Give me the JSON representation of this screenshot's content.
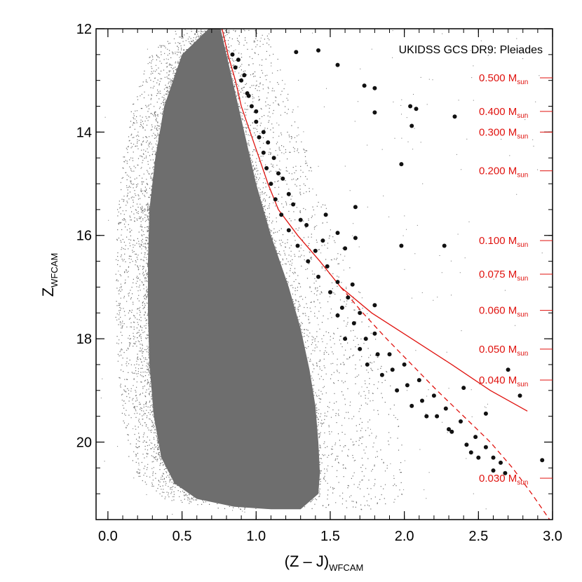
{
  "chart_data": {
    "type": "scatter",
    "title": "UKIDSS GCS DR9: Pleiades",
    "xlabel": "(Z – J)",
    "xlabel_sub": "WFCAM",
    "ylabel": "Z",
    "ylabel_sub": "WFCAM",
    "xlim": [
      -0.08,
      3.0
    ],
    "ylim": [
      21.5,
      12.0
    ],
    "y_inverted": true,
    "x_ticks": [
      0.0,
      0.5,
      1.0,
      1.5,
      2.0,
      2.5,
      3.0
    ],
    "x_tick_labels": [
      "0.0",
      "0.5",
      "1.0",
      "1.5",
      "2.0",
      "2.5",
      "3.0"
    ],
    "y_ticks": [
      12,
      14,
      16,
      18,
      20
    ],
    "y_tick_labels": [
      "12",
      "14",
      "16",
      "18",
      "20"
    ],
    "grid": false,
    "colors": {
      "field": "#6e6e6e",
      "members": "#111111",
      "isochrone": "#e0130f"
    },
    "field_population": {
      "name": "",
      "description_note": "",
      "left_edge": [
        [
          0.68,
          12.0
        ],
        [
          0.5,
          12.5
        ],
        [
          0.38,
          13.5
        ],
        [
          0.32,
          14.5
        ],
        [
          0.28,
          15.5
        ],
        [
          0.27,
          16.5
        ],
        [
          0.27,
          17.5
        ],
        [
          0.28,
          18.5
        ],
        [
          0.31,
          19.5
        ],
        [
          0.36,
          20.3
        ],
        [
          0.45,
          20.8
        ],
        [
          0.6,
          21.1
        ],
        [
          0.85,
          21.25
        ],
        [
          1.1,
          21.3
        ],
        [
          1.3,
          21.3
        ]
      ],
      "right_edge": [
        [
          0.76,
          12.0
        ],
        [
          0.84,
          13.0
        ],
        [
          0.92,
          14.0
        ],
        [
          1.0,
          15.0
        ],
        [
          1.1,
          16.0
        ],
        [
          1.22,
          17.0
        ],
        [
          1.3,
          17.8
        ],
        [
          1.36,
          18.6
        ],
        [
          1.4,
          19.3
        ],
        [
          1.42,
          20.0
        ],
        [
          1.43,
          20.6
        ],
        [
          1.42,
          21.0
        ],
        [
          1.3,
          21.3
        ]
      ]
    },
    "members": [
      [
        1.27,
        12.45
      ],
      [
        1.42,
        12.42
      ],
      [
        1.55,
        12.7
      ],
      [
        1.73,
        13.1
      ],
      [
        1.8,
        13.15
      ],
      [
        1.8,
        13.62
      ],
      [
        2.04,
        13.5
      ],
      [
        2.08,
        13.55
      ],
      [
        2.05,
        13.88
      ],
      [
        2.34,
        13.7
      ],
      [
        1.98,
        14.62
      ],
      [
        1.67,
        15.45
      ],
      [
        1.47,
        15.6
      ],
      [
        1.55,
        15.95
      ],
      [
        1.67,
        16.05
      ],
      [
        1.98,
        16.2
      ],
      [
        2.27,
        16.2
      ],
      [
        1.6,
        16.25
      ],
      [
        0.84,
        12.5
      ],
      [
        0.86,
        12.75
      ],
      [
        0.9,
        13.0
      ],
      [
        0.94,
        13.25
      ],
      [
        0.97,
        13.5
      ],
      [
        1.0,
        13.8
      ],
      [
        1.02,
        14.1
      ],
      [
        1.05,
        14.4
      ],
      [
        1.07,
        14.7
      ],
      [
        1.1,
        15.0
      ],
      [
        1.13,
        15.3
      ],
      [
        1.17,
        15.6
      ],
      [
        1.22,
        15.9
      ],
      [
        1.28,
        16.2
      ],
      [
        1.35,
        16.5
      ],
      [
        1.42,
        16.8
      ],
      [
        1.5,
        17.1
      ],
      [
        1.58,
        17.4
      ],
      [
        1.66,
        17.7
      ],
      [
        1.74,
        18.0
      ],
      [
        1.82,
        18.3
      ],
      [
        1.92,
        18.6
      ],
      [
        2.02,
        18.9
      ],
      [
        2.12,
        19.2
      ],
      [
        2.22,
        19.5
      ],
      [
        2.32,
        19.8
      ],
      [
        2.42,
        20.05
      ],
      [
        2.5,
        20.3
      ],
      [
        2.6,
        20.55
      ],
      [
        2.68,
        20.6
      ],
      [
        0.95,
        13.3
      ],
      [
        1.0,
        13.6
      ],
      [
        1.08,
        14.2
      ],
      [
        1.12,
        14.5
      ],
      [
        1.18,
        14.9
      ],
      [
        1.22,
        15.2
      ],
      [
        1.3,
        15.7
      ],
      [
        1.4,
        16.3
      ],
      [
        1.48,
        16.6
      ],
      [
        1.55,
        16.9
      ],
      [
        1.62,
        17.2
      ],
      [
        1.7,
        17.5
      ],
      [
        1.8,
        17.9
      ],
      [
        1.9,
        18.3
      ],
      [
        2.0,
        18.5
      ],
      [
        2.1,
        18.8
      ],
      [
        2.2,
        19.1
      ],
      [
        2.28,
        19.35
      ],
      [
        2.38,
        19.6
      ],
      [
        2.48,
        19.9
      ],
      [
        2.55,
        20.1
      ],
      [
        2.65,
        20.4
      ],
      [
        1.55,
        17.55
      ],
      [
        1.6,
        18.0
      ],
      [
        1.7,
        18.2
      ],
      [
        1.75,
        18.5
      ],
      [
        1.85,
        18.7
      ],
      [
        1.95,
        19.0
      ],
      [
        2.05,
        19.3
      ],
      [
        2.15,
        19.5
      ],
      [
        2.3,
        19.75
      ],
      [
        2.45,
        20.2
      ],
      [
        2.6,
        20.3
      ],
      [
        2.7,
        18.6
      ],
      [
        2.78,
        19.1
      ],
      [
        2.93,
        20.35
      ],
      [
        2.55,
        19.45
      ],
      [
        2.4,
        18.95
      ],
      [
        1.8,
        17.35
      ],
      [
        1.65,
        16.95
      ],
      [
        1.45,
        16.1
      ],
      [
        1.34,
        15.8
      ],
      [
        1.25,
        15.4
      ],
      [
        1.15,
        14.8
      ],
      [
        1.05,
        14.0
      ],
      [
        0.92,
        12.9
      ],
      [
        0.88,
        12.6
      ]
    ],
    "isochrone_solid": {
      "name": "",
      "points": [
        [
          0.77,
          12.0
        ],
        [
          0.81,
          12.5
        ],
        [
          0.86,
          13.0
        ],
        [
          0.9,
          13.5
        ],
        [
          0.96,
          14.0
        ],
        [
          1.02,
          14.5
        ],
        [
          1.08,
          15.0
        ],
        [
          1.15,
          15.5
        ],
        [
          1.28,
          16.0
        ],
        [
          1.43,
          16.5
        ],
        [
          1.57,
          17.0
        ],
        [
          1.78,
          17.5
        ],
        [
          2.05,
          18.0
        ],
        [
          2.32,
          18.5
        ],
        [
          2.58,
          19.0
        ],
        [
          2.83,
          19.4
        ]
      ]
    },
    "isochrone_dashed": {
      "name": "",
      "points": [
        [
          1.57,
          17.0
        ],
        [
          1.72,
          17.5
        ],
        [
          1.88,
          18.0
        ],
        [
          2.05,
          18.5
        ],
        [
          2.22,
          19.0
        ],
        [
          2.4,
          19.5
        ],
        [
          2.58,
          20.0
        ],
        [
          2.73,
          20.5
        ],
        [
          2.86,
          21.0
        ],
        [
          2.98,
          21.5
        ]
      ]
    },
    "mass_labels": [
      {
        "value": "0.500",
        "unit": "M",
        "unit_sub": "sun",
        "z": 12.95
      },
      {
        "value": "0.400",
        "unit": "M",
        "unit_sub": "sun",
        "z": 13.6
      },
      {
        "value": "0.300",
        "unit": "M",
        "unit_sub": "sun",
        "z": 14.0
      },
      {
        "value": "0.200",
        "unit": "M",
        "unit_sub": "sun",
        "z": 14.75
      },
      {
        "value": "0.100",
        "unit": "M",
        "unit_sub": "sun",
        "z": 16.1
      },
      {
        "value": "0.075",
        "unit": "M",
        "unit_sub": "sun",
        "z": 16.75
      },
      {
        "value": "0.060",
        "unit": "M",
        "unit_sub": "sun",
        "z": 17.45
      },
      {
        "value": "0.050",
        "unit": "M",
        "unit_sub": "sun",
        "z": 18.2
      },
      {
        "value": "0.040",
        "unit": "M",
        "unit_sub": "sun",
        "z": 18.8
      },
      {
        "value": "0.030",
        "unit": "M",
        "unit_sub": "sun",
        "z": 20.7
      }
    ]
  }
}
